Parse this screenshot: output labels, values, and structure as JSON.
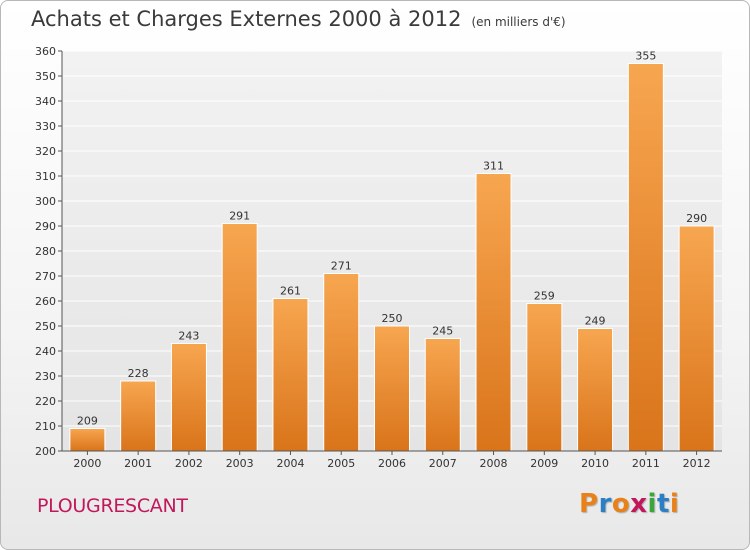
{
  "header": {
    "title": "Achats et Charges Externes 2000 à 2012",
    "subtitle": "(en milliers d'€)"
  },
  "footer": {
    "commune": "PLOUGRESCANT",
    "logo_text": "Proxiti",
    "logo_colors": [
      "#e8811a",
      "#2b7fc4",
      "#e8811a",
      "#c2185b",
      "#3aa63a",
      "#2b7fc4",
      "#e8811a"
    ]
  },
  "chart_data": {
    "type": "bar",
    "categories": [
      "2000",
      "2001",
      "2002",
      "2003",
      "2004",
      "2005",
      "2006",
      "2007",
      "2008",
      "2009",
      "2010",
      "2011",
      "2012"
    ],
    "values": [
      209,
      228,
      243,
      291,
      261,
      271,
      250,
      245,
      311,
      259,
      249,
      355,
      290
    ],
    "title": "Achats et Charges Externes 2000 à 2012",
    "ylim": [
      200,
      360
    ],
    "yticks": [
      200,
      210,
      220,
      230,
      240,
      250,
      260,
      270,
      280,
      290,
      300,
      310,
      320,
      330,
      340,
      350,
      360
    ],
    "grid": true,
    "bar_color_top": "#f7a650",
    "bar_color_bottom": "#d9741a"
  }
}
